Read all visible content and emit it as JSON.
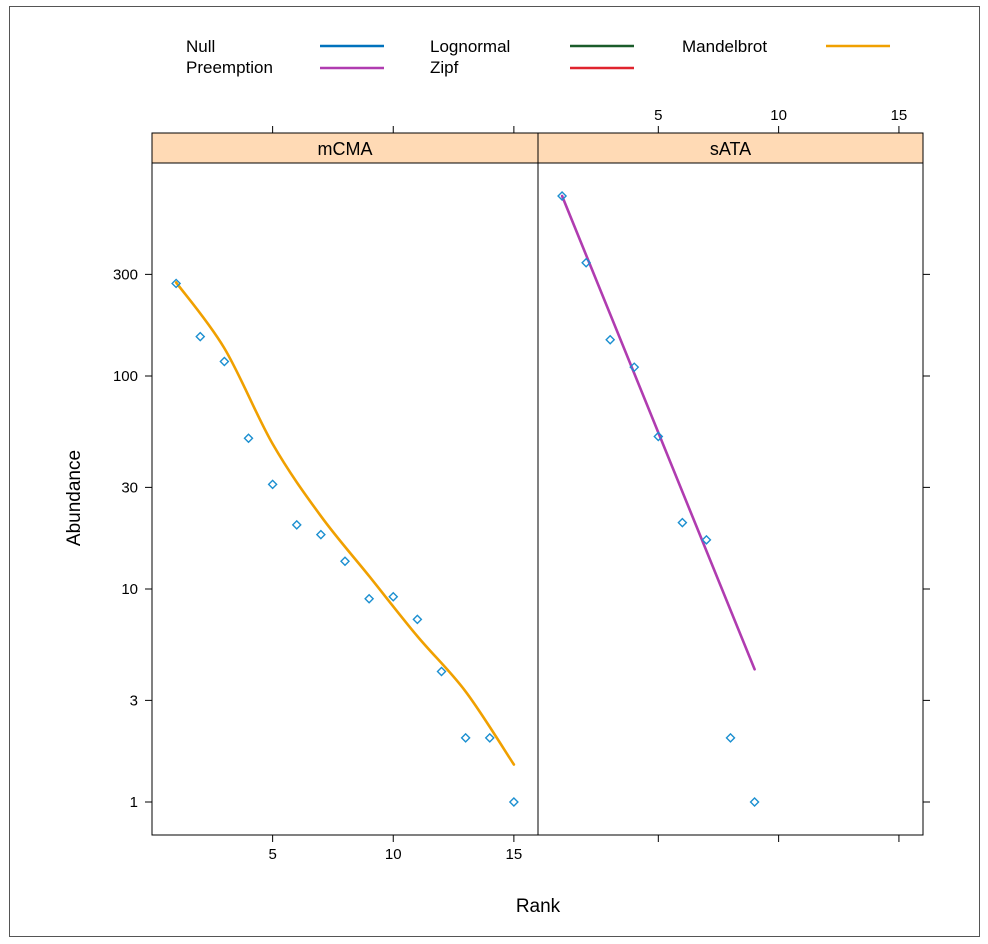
{
  "chart_data": {
    "type": "scatter",
    "xlabel": "Rank",
    "ylabel": "Abundance",
    "log_y": true,
    "xlim": [
      0,
      16
    ],
    "ylim": [
      0.7,
      1000
    ],
    "x_ticks": [
      5,
      10,
      15
    ],
    "y_ticks": [
      1,
      3,
      10,
      30,
      100,
      300
    ],
    "y_tick_labels": [
      "1",
      "3",
      "10",
      "30",
      "100",
      "300"
    ],
    "x_tick_labels": [
      "5",
      "10",
      "15"
    ],
    "legend": {
      "placement": "top",
      "entries": [
        {
          "name": "Null",
          "color": "#0072BD"
        },
        {
          "name": "Preemption",
          "color": "#B03CB0"
        },
        {
          "name": "Lognormal",
          "color": "#1A5C2A"
        },
        {
          "name": "Zipf",
          "color": "#E0242E"
        },
        {
          "name": "Mandelbrot",
          "color": "#F0A000"
        }
      ]
    },
    "point_color": "#1B8FD0",
    "strip_color": "#FFDAB5",
    "panels": [
      {
        "strip": "mCMA",
        "points": [
          {
            "x": 1,
            "y": 272
          },
          {
            "x": 2,
            "y": 153
          },
          {
            "x": 3,
            "y": 117
          },
          {
            "x": 4,
            "y": 51
          },
          {
            "x": 5,
            "y": 31
          },
          {
            "x": 6,
            "y": 20
          },
          {
            "x": 7,
            "y": 18
          },
          {
            "x": 8,
            "y": 13.5
          },
          {
            "x": 9,
            "y": 9
          },
          {
            "x": 10,
            "y": 9.2
          },
          {
            "x": 11,
            "y": 7.2
          },
          {
            "x": 12,
            "y": 4.1
          },
          {
            "x": 13,
            "y": 2
          },
          {
            "x": 14,
            "y": 2
          },
          {
            "x": 15,
            "y": 1
          }
        ],
        "fit": {
          "model": "Mandelbrot",
          "color": "#F0A000",
          "points": [
            {
              "x": 1,
              "y": 275
            },
            {
              "x": 3,
              "y": 135
            },
            {
              "x": 5,
              "y": 48
            },
            {
              "x": 7,
              "y": 22
            },
            {
              "x": 9,
              "y": 11.5
            },
            {
              "x": 11,
              "y": 6
            },
            {
              "x": 13,
              "y": 3.3
            },
            {
              "x": 15,
              "y": 1.5
            }
          ]
        }
      },
      {
        "strip": "sATA",
        "points": [
          {
            "x": 1,
            "y": 700
          },
          {
            "x": 2,
            "y": 340
          },
          {
            "x": 3,
            "y": 148
          },
          {
            "x": 4,
            "y": 110
          },
          {
            "x": 5,
            "y": 52
          },
          {
            "x": 6,
            "y": 20.5
          },
          {
            "x": 7,
            "y": 17
          },
          {
            "x": 8,
            "y": 2
          },
          {
            "x": 9,
            "y": 1
          }
        ],
        "fit": {
          "model": "Preemption",
          "color": "#B03CB0",
          "points": [
            {
              "x": 1,
              "y": 700
            },
            {
              "x": 9,
              "y": 4.2
            }
          ]
        }
      }
    ]
  }
}
